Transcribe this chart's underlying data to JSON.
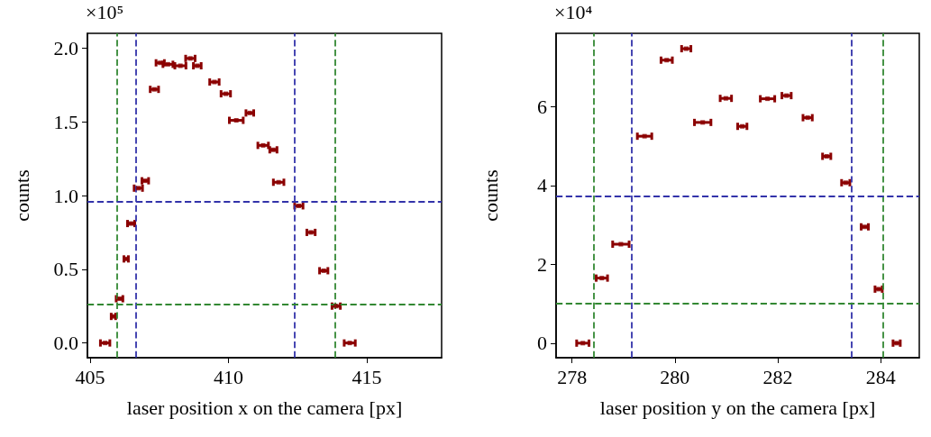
{
  "chart_data": [
    {
      "type": "scatter",
      "xlabel": "laser position x on the camera [px]",
      "ylabel": "counts",
      "annotations": [
        "×10⁵"
      ],
      "marker": "square",
      "xlim": [
        404.9,
        417.7
      ],
      "xticks": [
        405,
        410,
        415
      ],
      "ylim": [
        -0.1,
        2.1
      ],
      "yticks": [
        {
          "value": 0,
          "label": "0.0"
        },
        {
          "value": 0.5,
          "label": "0.5"
        },
        {
          "value": 1,
          "label": "1.0"
        },
        {
          "value": 1.5,
          "label": "1.5"
        },
        {
          "value": 2,
          "label": "2.0"
        }
      ],
      "series": [
        {
          "color": "#8b0000",
          "x": [
            405.54,
            405.84,
            406.06,
            406.3,
            406.48,
            406.74,
            406.99,
            407.32,
            407.53,
            407.81,
            408.26,
            408.62,
            408.87,
            409.49,
            409.9,
            410.28,
            410.77,
            411.25,
            411.62,
            411.81,
            412.54,
            412.98,
            413.44,
            413.89,
            414.38
          ],
          "values": [
            0,
            0.18,
            0.3,
            0.57,
            0.81,
            1.05,
            1.1,
            1.72,
            1.9,
            1.89,
            1.88,
            1.93,
            1.88,
            1.77,
            1.69,
            1.51,
            1.56,
            1.34,
            1.31,
            1.09,
            0.93,
            0.75,
            0.49,
            0.25,
            0
          ],
          "xerrors": [
            0.17,
            0.08,
            0.12,
            0.08,
            0.13,
            0.15,
            0.12,
            0.15,
            0.15,
            0.18,
            0.2,
            0.17,
            0.14,
            0.17,
            0.17,
            0.25,
            0.14,
            0.19,
            0.13,
            0.19,
            0.15,
            0.15,
            0.15,
            0.15,
            0.2
          ]
        }
      ],
      "ref_lines": [
        {
          "axis": "x",
          "value": 405.98,
          "color": "#338833",
          "line_style": "dashed"
        },
        {
          "axis": "x",
          "value": 406.65,
          "color": "#3333aa",
          "line_style": "dashed"
        },
        {
          "axis": "x",
          "value": 412.38,
          "color": "#3333aa",
          "line_style": "dashed"
        },
        {
          "axis": "x",
          "value": 413.86,
          "color": "#338833",
          "line_style": "dashed"
        },
        {
          "axis": "y",
          "value": 0.96,
          "color": "#3333aa",
          "line_style": "dashed"
        },
        {
          "axis": "y",
          "value": 0.26,
          "color": "#338833",
          "line_style": "dashed"
        }
      ]
    },
    {
      "type": "scatter",
      "xlabel": "laser position y on the camera [px]",
      "ylabel": "counts",
      "annotations": [
        "×10⁴"
      ],
      "marker": "square",
      "xlim": [
        277.69,
        284.75
      ],
      "xticks": [
        278,
        280,
        282,
        284
      ],
      "ylim": [
        -0.37,
        7.86
      ],
      "yticks": [
        0,
        2,
        4,
        6
      ],
      "series": [
        {
          "color": "#8b0000",
          "x": [
            278.21,
            278.58,
            278.95,
            279.41,
            279.84,
            280.22,
            280.54,
            280.99,
            281.31,
            281.8,
            282.17,
            282.58,
            282.95,
            283.32,
            283.69,
            283.96,
            284.31
          ],
          "values": [
            0,
            1.65,
            2.51,
            5.25,
            7.18,
            7.47,
            5.6,
            6.21,
            5.5,
            6.2,
            6.28,
            5.72,
            4.74,
            4.07,
            2.95,
            1.37,
            0
          ],
          "xerrors": [
            0.12,
            0.11,
            0.16,
            0.14,
            0.11,
            0.09,
            0.16,
            0.11,
            0.09,
            0.14,
            0.09,
            0.09,
            0.08,
            0.08,
            0.07,
            0.07,
            0.07
          ]
        }
      ],
      "ref_lines": [
        {
          "axis": "x",
          "value": 278.43,
          "color": "#338833",
          "line_style": "dashed"
        },
        {
          "axis": "x",
          "value": 279.15,
          "color": "#3333aa",
          "line_style": "dashed"
        },
        {
          "axis": "x",
          "value": 283.43,
          "color": "#3333aa",
          "line_style": "dashed"
        },
        {
          "axis": "x",
          "value": 284.05,
          "color": "#338833",
          "line_style": "dashed"
        },
        {
          "axis": "y",
          "value": 3.73,
          "color": "#3333aa",
          "line_style": "dashed"
        },
        {
          "axis": "y",
          "value": 1.005,
          "color": "#338833",
          "line_style": "dashed"
        }
      ]
    }
  ]
}
